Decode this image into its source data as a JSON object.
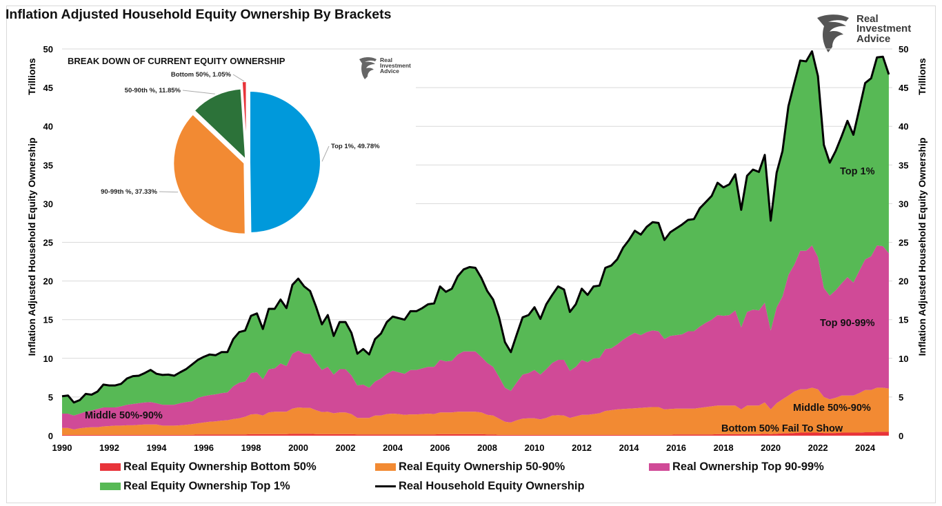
{
  "title": "Inflation Adjusted Household Equity Ownership By Brackets",
  "logo": {
    "text_line1": "Real",
    "text_line2": "Investment",
    "text_line3": "Advice"
  },
  "y_axis_left": {
    "title": "Inflation Adjusted Household Equity Ownership",
    "unit": "Trillions"
  },
  "y_axis_right": {
    "title": "Inflation Adjusted Household Equity Ownership",
    "unit": "Trillions"
  },
  "annotations": {
    "middle_left": "Middle 50%-90%",
    "top1": "Top 1%",
    "top90_99": "Top 90-99%",
    "middle_right": "Middle 50%-90%",
    "bottom": "Bottom 50% Fail To Show"
  },
  "legend": [
    {
      "label": "Real Equity Ownership Bottom 50%",
      "color": "#e8343a",
      "kind": "area"
    },
    {
      "label": "Real Equity Ownership 50-90%",
      "color": "#f28a33",
      "kind": "area"
    },
    {
      "label": "Real Ownership Top 90-99%",
      "color": "#d04a97",
      "kind": "area"
    },
    {
      "label": "Real Equity Ownership Top 1%",
      "color": "#57b955",
      "kind": "area"
    },
    {
      "label": "Real Household Equity Ownership",
      "color": "#000000",
      "kind": "line"
    }
  ],
  "chart_data": [
    {
      "type": "area",
      "stacked": true,
      "ylabel": "Inflation Adjusted Household Equity Ownership",
      "yunit": "Trillions",
      "ylim": [
        0,
        50
      ],
      "yticks": [
        0,
        5,
        10,
        15,
        20,
        25,
        30,
        35,
        40,
        45,
        50
      ],
      "xlim": [
        1990,
        2025.15
      ],
      "xticks": [
        1990,
        1992,
        1994,
        1996,
        1998,
        2000,
        2002,
        2004,
        2006,
        2008,
        2010,
        2012,
        2014,
        2016,
        2018,
        2020,
        2022,
        2024
      ],
      "grid": true,
      "legend_placement": "bottom",
      "x": [
        1990,
        1990.25,
        1990.5,
        1990.75,
        1991,
        1991.25,
        1991.5,
        1991.75,
        1992,
        1992.25,
        1992.5,
        1992.75,
        1993,
        1993.25,
        1993.5,
        1993.75,
        1994,
        1994.25,
        1994.5,
        1994.75,
        1995,
        1995.25,
        1995.5,
        1995.75,
        1996,
        1996.25,
        1996.5,
        1996.75,
        1997,
        1997.25,
        1997.5,
        1997.75,
        1998,
        1998.25,
        1998.5,
        1998.75,
        1999,
        1999.25,
        1999.5,
        1999.75,
        2000,
        2000.25,
        2000.5,
        2000.75,
        2001,
        2001.25,
        2001.5,
        2001.75,
        2002,
        2002.25,
        2002.5,
        2002.75,
        2003,
        2003.25,
        2003.5,
        2003.75,
        2004,
        2004.25,
        2004.5,
        2004.75,
        2005,
        2005.25,
        2005.5,
        2005.75,
        2006,
        2006.25,
        2006.5,
        2006.75,
        2007,
        2007.25,
        2007.5,
        2007.75,
        2008,
        2008.25,
        2008.5,
        2008.75,
        2009,
        2009.25,
        2009.5,
        2009.75,
        2010,
        2010.25,
        2010.5,
        2010.75,
        2011,
        2011.25,
        2011.5,
        2011.75,
        2012,
        2012.25,
        2012.5,
        2012.75,
        2013,
        2013.25,
        2013.5,
        2013.75,
        2014,
        2014.25,
        2014.5,
        2014.75,
        2015,
        2015.25,
        2015.5,
        2015.75,
        2016,
        2016.25,
        2016.5,
        2016.75,
        2017,
        2017.25,
        2017.5,
        2017.75,
        2018,
        2018.25,
        2018.5,
        2018.75,
        2019,
        2019.25,
        2019.5,
        2019.75,
        2020,
        2020.25,
        2020.5,
        2020.75,
        2021,
        2021.25,
        2021.5,
        2021.75,
        2022,
        2022.25,
        2022.5,
        2022.75,
        2023,
        2023.25,
        2023.5,
        2023.75,
        2024,
        2024.25,
        2024.5,
        2024.75,
        2025
      ],
      "series": [
        {
          "name": "Real Equity Ownership Bottom 50%",
          "color": "#e8343a",
          "values": [
            0.1,
            0.1,
            0.1,
            0.1,
            0.1,
            0.1,
            0.1,
            0.1,
            0.1,
            0.1,
            0.1,
            0.1,
            0.1,
            0.1,
            0.1,
            0.1,
            0.1,
            0.1,
            0.1,
            0.1,
            0.1,
            0.1,
            0.1,
            0.15,
            0.15,
            0.15,
            0.15,
            0.15,
            0.15,
            0.15,
            0.15,
            0.15,
            0.2,
            0.2,
            0.2,
            0.2,
            0.2,
            0.2,
            0.2,
            0.25,
            0.25,
            0.25,
            0.25,
            0.2,
            0.2,
            0.2,
            0.2,
            0.2,
            0.2,
            0.2,
            0.15,
            0.15,
            0.15,
            0.15,
            0.15,
            0.15,
            0.15,
            0.15,
            0.15,
            0.15,
            0.15,
            0.15,
            0.15,
            0.15,
            0.2,
            0.2,
            0.2,
            0.2,
            0.2,
            0.2,
            0.2,
            0.2,
            0.15,
            0.15,
            0.1,
            0.1,
            0.1,
            0.1,
            0.1,
            0.1,
            0.1,
            0.1,
            0.1,
            0.1,
            0.1,
            0.1,
            0.1,
            0.1,
            0.1,
            0.1,
            0.1,
            0.1,
            0.1,
            0.1,
            0.1,
            0.1,
            0.1,
            0.1,
            0.1,
            0.1,
            0.1,
            0.1,
            0.1,
            0.1,
            0.15,
            0.15,
            0.15,
            0.15,
            0.15,
            0.15,
            0.15,
            0.2,
            0.2,
            0.2,
            0.2,
            0.2,
            0.2,
            0.2,
            0.2,
            0.25,
            0.2,
            0.25,
            0.3,
            0.3,
            0.35,
            0.4,
            0.4,
            0.4,
            0.4,
            0.35,
            0.35,
            0.35,
            0.4,
            0.4,
            0.4,
            0.4,
            0.45,
            0.45,
            0.5,
            0.5,
            0.49
          ]
        },
        {
          "name": "Real Equity Ownership 50-90%",
          "color": "#f28a33",
          "values": [
            0.9,
            0.9,
            0.7,
            0.85,
            0.95,
            1.0,
            1.0,
            1.1,
            1.15,
            1.2,
            1.2,
            1.25,
            1.25,
            1.3,
            1.35,
            1.35,
            1.35,
            1.2,
            1.2,
            1.2,
            1.25,
            1.3,
            1.4,
            1.45,
            1.55,
            1.65,
            1.7,
            1.8,
            1.85,
            2.0,
            2.1,
            2.3,
            2.55,
            2.6,
            2.4,
            2.8,
            2.9,
            2.9,
            2.9,
            3.25,
            3.4,
            3.35,
            3.35,
            3.1,
            2.85,
            2.9,
            2.7,
            2.8,
            2.8,
            2.6,
            2.15,
            2.15,
            2.15,
            2.45,
            2.45,
            2.65,
            2.7,
            2.65,
            2.55,
            2.6,
            2.6,
            2.65,
            2.7,
            2.65,
            2.8,
            2.8,
            2.8,
            2.9,
            2.9,
            2.9,
            2.9,
            2.8,
            2.55,
            2.45,
            2.1,
            1.7,
            1.6,
            1.9,
            2.1,
            2.15,
            2.15,
            2.0,
            2.2,
            2.5,
            2.55,
            2.5,
            2.2,
            2.4,
            2.6,
            2.6,
            2.7,
            2.8,
            3.1,
            3.2,
            3.3,
            3.35,
            3.4,
            3.45,
            3.5,
            3.55,
            3.6,
            3.6,
            3.3,
            3.35,
            3.35,
            3.35,
            3.35,
            3.35,
            3.45,
            3.55,
            3.65,
            3.7,
            3.7,
            3.7,
            3.7,
            3.2,
            3.7,
            3.7,
            3.7,
            4.05,
            3.2,
            3.95,
            4.4,
            4.9,
            5.35,
            5.6,
            5.6,
            5.8,
            5.6,
            4.65,
            4.35,
            4.55,
            4.8,
            4.8,
            4.8,
            5.1,
            5.45,
            5.45,
            5.7,
            5.7,
            5.61
          ]
        },
        {
          "name": "Real Ownership Top 90-99%",
          "color": "#d04a97",
          "values": [
            1.85,
            1.85,
            1.8,
            1.9,
            2.05,
            2.15,
            2.35,
            2.45,
            2.4,
            2.35,
            2.5,
            2.65,
            2.75,
            2.8,
            2.85,
            2.9,
            2.75,
            2.7,
            2.7,
            2.7,
            2.85,
            2.95,
            2.95,
            3.3,
            3.4,
            3.45,
            3.5,
            3.55,
            3.6,
            4.25,
            4.6,
            4.55,
            5.35,
            5.4,
            4.7,
            5.6,
            5.6,
            6.25,
            5.9,
            7.1,
            7.35,
            7.0,
            7.0,
            6.2,
            5.45,
            5.8,
            5.0,
            5.6,
            5.6,
            5.0,
            4.2,
            4.3,
            3.9,
            4.4,
            4.8,
            5.2,
            5.55,
            5.4,
            5.3,
            5.75,
            5.75,
            5.9,
            6.05,
            6.1,
            6.8,
            6.6,
            6.7,
            7.4,
            7.8,
            7.8,
            7.8,
            7.2,
            6.7,
            6.3,
            5.4,
            4.4,
            4.1,
            4.9,
            5.7,
            5.85,
            6.25,
            5.8,
            6.3,
            6.8,
            7.15,
            7.2,
            6.1,
            6.4,
            7.1,
            6.8,
            7.2,
            7.15,
            8.0,
            8.0,
            8.4,
            8.95,
            9.4,
            9.75,
            9.4,
            9.75,
            9.9,
            9.8,
            9.1,
            9.45,
            9.5,
            9.6,
            10.0,
            10.0,
            10.5,
            10.9,
            11.2,
            11.7,
            11.6,
            11.7,
            12.3,
            10.6,
            12.1,
            12.4,
            12.3,
            12.9,
            10.2,
            12.4,
            13.3,
            15.6,
            16.4,
            17.9,
            17.9,
            18.4,
            17.1,
            14.1,
            13.4,
            13.9,
            14.5,
            15.3,
            14.6,
            15.8,
            16.9,
            17.3,
            18.4,
            18.3,
            17.5
          ]
        },
        {
          "name": "Real Equity Ownership Top 1%",
          "color": "#57b955",
          "values": [
            2.25,
            2.35,
            1.7,
            1.75,
            2.3,
            2.05,
            2.25,
            2.95,
            2.85,
            2.85,
            2.9,
            3.4,
            3.6,
            3.55,
            3.8,
            4.15,
            3.8,
            3.85,
            3.9,
            3.75,
            4.0,
            4.25,
            4.75,
            4.9,
            5.1,
            5.25,
            5.05,
            5.3,
            5.2,
            6.1,
            6.55,
            6.6,
            7.4,
            7.6,
            6.5,
            7.8,
            7.7,
            8.25,
            7.5,
            8.9,
            9.3,
            8.7,
            8.1,
            7.2,
            5.9,
            6.7,
            5.0,
            6.1,
            6.1,
            5.5,
            4.1,
            4.6,
            4.3,
            5.5,
            5.8,
            6.7,
            7.0,
            7.0,
            7.0,
            7.6,
            7.6,
            7.8,
            8.1,
            8.2,
            9.5,
            9.0,
            9.3,
            10.1,
            10.6,
            10.9,
            10.8,
            10.2,
            9.3,
            8.7,
            7.7,
            5.9,
            5.0,
            6.2,
            7.4,
            7.5,
            8.1,
            7.2,
            8.4,
            8.8,
            9.5,
            9.1,
            7.6,
            8.1,
            9.2,
            8.7,
            9.3,
            9.35,
            10.5,
            10.7,
            11.0,
            11.9,
            12.4,
            13.2,
            13.0,
            13.6,
            14.0,
            14.0,
            12.8,
            13.4,
            13.8,
            14.2,
            14.4,
            14.5,
            15.3,
            15.6,
            16.0,
            17.1,
            16.6,
            16.9,
            17.6,
            15.2,
            17.6,
            18.1,
            17.9,
            19.1,
            14.2,
            17.4,
            18.8,
            21.8,
            23.5,
            24.6,
            24.5,
            25.1,
            23.4,
            18.5,
            17.2,
            18.0,
            19.0,
            20.2,
            19.1,
            20.9,
            22.8,
            23.0,
            24.3,
            24.5,
            23.1
          ]
        },
        {
          "name": "Real Household Equity Ownership",
          "color": "#000000",
          "kind": "line",
          "values": [
            5.1,
            5.2,
            4.3,
            4.6,
            5.4,
            5.3,
            5.7,
            6.6,
            6.5,
            6.5,
            6.7,
            7.4,
            7.7,
            7.75,
            8.1,
            8.5,
            8.0,
            7.85,
            7.9,
            7.75,
            8.2,
            8.6,
            9.2,
            9.8,
            10.2,
            10.5,
            10.4,
            10.8,
            10.8,
            12.5,
            13.4,
            13.6,
            15.5,
            15.8,
            13.8,
            16.4,
            16.4,
            17.6,
            16.5,
            19.5,
            20.3,
            19.3,
            18.7,
            16.7,
            14.4,
            15.6,
            12.9,
            14.7,
            14.7,
            13.3,
            10.6,
            11.2,
            10.5,
            12.5,
            13.2,
            14.7,
            15.4,
            15.2,
            15.0,
            16.1,
            16.1,
            16.5,
            17.0,
            17.1,
            19.3,
            18.6,
            19.0,
            20.6,
            21.5,
            21.8,
            21.7,
            20.4,
            18.7,
            17.6,
            15.3,
            12.1,
            10.8,
            13.1,
            15.3,
            15.6,
            16.6,
            15.1,
            17.0,
            18.2,
            19.3,
            18.9,
            16.0,
            17.0,
            19.0,
            18.2,
            19.3,
            19.4,
            21.7,
            22.0,
            22.8,
            24.3,
            25.3,
            26.5,
            26.0,
            27.0,
            27.6,
            27.5,
            25.3,
            26.3,
            26.8,
            27.3,
            27.9,
            28.0,
            29.4,
            30.2,
            31.0,
            32.7,
            32.1,
            32.5,
            33.8,
            29.2,
            33.6,
            34.4,
            34.1,
            36.3,
            27.8,
            34.0,
            36.8,
            42.6,
            45.6,
            48.5,
            48.4,
            49.7,
            46.5,
            37.6,
            35.3,
            36.8,
            38.7,
            40.7,
            38.9,
            42.2,
            45.6,
            46.2,
            48.9,
            49.0,
            46.7
          ]
        }
      ]
    },
    {
      "type": "pie",
      "title": "BREAK DOWN OF CURRENT EQUITY OWNERSHIP",
      "slices": [
        {
          "label": "Top 1%, 49.78%",
          "category": "Top 1%",
          "value": 49.78,
          "color": "#0099db"
        },
        {
          "label": "90-99th %, 37.33%",
          "category": "90-99th %",
          "value": 37.33,
          "color": "#f28a33"
        },
        {
          "label": "50-90th %, 11.85%",
          "category": "50-90th %",
          "value": 11.85,
          "color": "#2c7239"
        },
        {
          "label": "Bottom 50%, 1.05%",
          "category": "Bottom 50%",
          "value": 1.05,
          "color": "#e8343a",
          "exploded": true
        }
      ]
    }
  ]
}
